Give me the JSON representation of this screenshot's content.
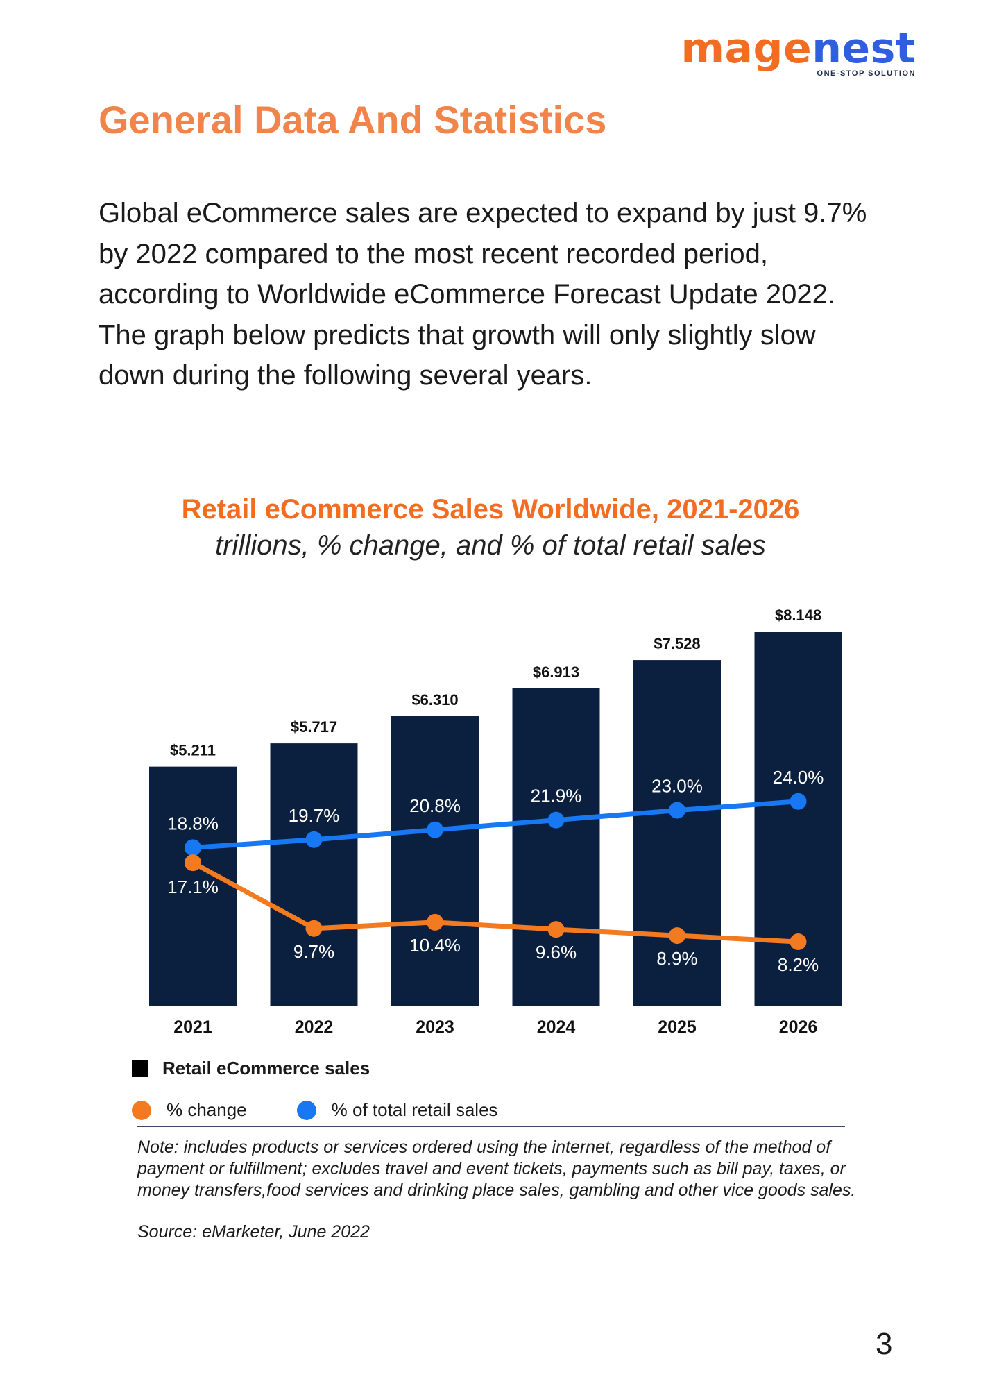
{
  "logo": {
    "word_part1": "mage",
    "word_part2": "nest",
    "tagline": "ONE-STOP SOLUTION"
  },
  "heading": "General Data And Statistics",
  "intro": "Global eCommerce sales are expected to expand by just 9.7% by 2022 compared to the most recent recorded period, according to Worldwide eCommerce Forecast Update 2022. The graph below predicts that growth will only slightly slow down during the following several years.",
  "colors": {
    "accent": "#f26c22",
    "heading": "#f0844a",
    "bar": "#0b1f3f",
    "pct_change": "#f47a20",
    "pct_total": "#1877f2",
    "logo_blue": "#2f5fe0"
  },
  "chart_data": {
    "type": "bar",
    "title": "Retail eCommerce Sales Worldwide, 2021-2026",
    "subtitle": "trillions, % change, and % of total retail sales",
    "categories": [
      "2021",
      "2022",
      "2023",
      "2024",
      "2025",
      "2026"
    ],
    "series": [
      {
        "name": "Retail eCommerce sales",
        "type": "bar",
        "values": [
          5.211,
          5.717,
          6.31,
          6.913,
          7.528,
          8.148
        ],
        "labels": [
          "$5.211",
          "$5.717",
          "$6.310",
          "$6.913",
          "$7.528",
          "$8.148"
        ]
      },
      {
        "name": "% change",
        "type": "line",
        "values": [
          17.1,
          9.7,
          10.4,
          9.6,
          8.9,
          8.2
        ],
        "labels": [
          "17.1%",
          "9.7%",
          "10.4%",
          "9.6%",
          "8.9%",
          "8.2%"
        ]
      },
      {
        "name": "% of total retail sales",
        "type": "line",
        "values": [
          18.8,
          19.7,
          20.8,
          21.9,
          23.0,
          24.0
        ],
        "labels": [
          "18.8%",
          "19.7%",
          "20.8%",
          "21.9%",
          "23.0%",
          "24.0%"
        ]
      }
    ],
    "legend_placement": "bottom-left",
    "grid": false
  },
  "legend": {
    "bar": "Retail eCommerce sales",
    "pct_change": "% change",
    "pct_total": "% of total retail sales"
  },
  "note": "Note: includes products or services ordered using the internet, regardless of the method of payment or fulfillment; excludes travel and event tickets, payments such as bill pay, taxes, or money transfers,food services and drinking place sales, gambling and other vice goods sales.",
  "source": "Source: eMarketer, June 2022",
  "page_number": "3"
}
